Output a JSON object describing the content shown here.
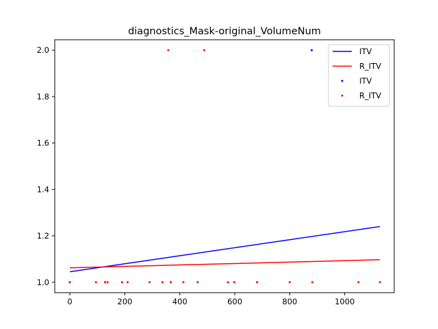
{
  "chart_data": {
    "type": "scatter",
    "title": "diagnostics_Mask-original_VolumeNum",
    "xlabel": "",
    "ylabel": "",
    "xlim": [
      -55,
      1180
    ],
    "ylim": [
      0.955,
      2.045
    ],
    "x_ticks": [
      0,
      200,
      400,
      600,
      800,
      1000
    ],
    "y_ticks": [
      1.0,
      1.2,
      1.4,
      1.6,
      1.8,
      2.0
    ],
    "x_tick_labels": [
      "0",
      "200",
      "400",
      "600",
      "800",
      "1000"
    ],
    "y_tick_labels": [
      "1.0",
      "1.2",
      "1.4",
      "1.6",
      "1.8",
      "2.0"
    ],
    "grid": false,
    "legend_position": "top-right",
    "legend": [
      {
        "label": "ITV",
        "kind": "line",
        "color": "#0000ff"
      },
      {
        "label": "R_ITV",
        "kind": "line",
        "color": "#ff0000"
      },
      {
        "label": "ITV",
        "kind": "point",
        "color": "#0000ff"
      },
      {
        "label": "R_ITV",
        "kind": "point",
        "color": "#ff0000"
      }
    ],
    "series": [
      {
        "name": "ITV",
        "kind": "line",
        "color": "#0000ff",
        "x": [
          0,
          1128
        ],
        "y": [
          1.045,
          1.24
        ]
      },
      {
        "name": "R_ITV",
        "kind": "line",
        "color": "#ff0000",
        "x": [
          0,
          1128
        ],
        "y": [
          1.062,
          1.097
        ]
      },
      {
        "name": "ITV",
        "kind": "scatter",
        "color": "#0000ff",
        "x": [
          0,
          880
        ],
        "y": [
          1.0,
          2.0
        ]
      },
      {
        "name": "R_ITV",
        "kind": "scatter",
        "color": "#ff0000",
        "x": [
          0,
          95,
          128,
          137,
          190,
          210,
          290,
          337,
          358,
          367,
          413,
          465,
          489,
          575,
          598,
          681,
          800,
          882,
          1050,
          1128
        ],
        "y": [
          1.0,
          1.0,
          1.0,
          1.0,
          1.0,
          1.0,
          1.0,
          1.0,
          2.0,
          1.0,
          1.0,
          1.0,
          2.0,
          1.0,
          1.0,
          1.0,
          1.0,
          1.0,
          1.0,
          1.0
        ]
      }
    ]
  }
}
